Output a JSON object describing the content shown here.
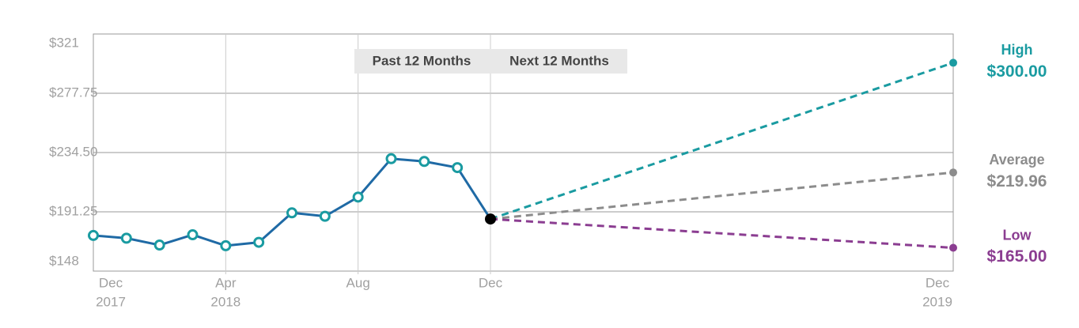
{
  "chart_data": {
    "type": "line",
    "period_labels": [
      "Past 12 Months",
      "Next 12 Months"
    ],
    "categories": [
      [
        "Dec",
        "2017"
      ],
      null,
      null,
      null,
      [
        "Apr",
        "2018"
      ],
      null,
      null,
      null,
      [
        "Aug"
      ],
      null,
      null,
      null,
      [
        "Dec"
      ]
    ],
    "series": [
      {
        "color": "#1f6aa5",
        "marker_color": "#1a9ba1",
        "end_color": "#000000",
        "values": [
          174,
          172,
          167,
          174.5,
          166.5,
          169,
          190.5,
          188,
          202,
          230,
          228,
          223.5,
          186
        ]
      }
    ],
    "forecast_end_label": [
      "Dec",
      "2019"
    ],
    "forecasts": [
      {
        "name": "High",
        "color": "#1a9ba1",
        "value": 300,
        "value_label": "$300.00"
      },
      {
        "name": "Average",
        "color": "#8c8c8c",
        "value": 219.96,
        "value_label": "$219.96"
      },
      {
        "name": "Low",
        "color": "#8b3d91",
        "value": 165,
        "value_label": "$165.00"
      }
    ],
    "ylim": [
      148,
      321
    ],
    "yticks": [
      {
        "value": 148,
        "label": "$148"
      },
      {
        "value": 191.25,
        "label": "$191.25"
      },
      {
        "value": 234.5,
        "label": "$234.50"
      },
      {
        "value": 277.75,
        "label": "$277.75"
      },
      {
        "value": 321,
        "label": "$321"
      }
    ],
    "grid": true
  }
}
